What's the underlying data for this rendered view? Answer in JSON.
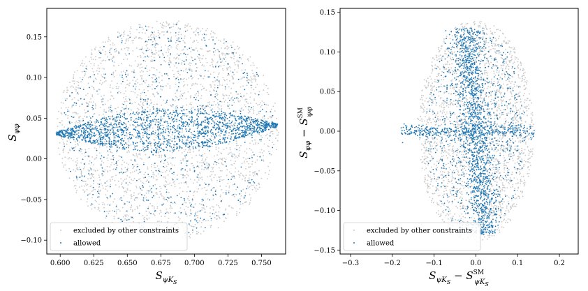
{
  "chart_data": [
    {
      "type": "scatter",
      "panel": "left",
      "xlabel": "S_{ψK_S}",
      "ylabel": "S_{ψφ}",
      "xlim": [
        0.59,
        0.768
      ],
      "ylim": [
        -0.117,
        0.185
      ],
      "xticks": [
        0.6,
        0.625,
        0.65,
        0.675,
        0.7,
        0.725,
        0.75
      ],
      "xtick_labels": [
        "0.600",
        "0.625",
        "0.650",
        "0.675",
        "0.700",
        "0.725",
        "0.750"
      ],
      "yticks": [
        -0.1,
        -0.05,
        0.0,
        0.05,
        0.1,
        0.15
      ],
      "ytick_labels": [
        "−0.10",
        "−0.05",
        "0.00",
        "0.05",
        "0.10",
        "0.15"
      ],
      "grid": false,
      "legend_position": "lower-left",
      "series": [
        {
          "name": "excluded by other constraints",
          "color": "#c8c8c8",
          "distribution": "ellipse",
          "center": [
            0.68,
            0.035
          ],
          "radii": [
            0.083,
            0.135
          ],
          "n_points": 2600
        },
        {
          "name": "allowed",
          "color": "#1f77b4",
          "distribution": "lens",
          "endpoints": [
            [
              0.597,
              0.031
            ],
            [
              0.762,
              0.041
            ]
          ],
          "half_height": 0.025,
          "extra_ellipse_radii": [
            0.08,
            0.13
          ],
          "n_points": 2200
        }
      ]
    },
    {
      "type": "scatter",
      "panel": "right",
      "xlabel": "S_{ψK_S} − S^{SM}_{ψK_S}",
      "ylabel": "S_{ψφ} − S^{SM}_{ψφ}",
      "xlim": [
        -0.325,
        0.245
      ],
      "ylim": [
        -0.155,
        0.155
      ],
      "xticks": [
        -0.3,
        -0.2,
        -0.1,
        0.0,
        0.1,
        0.2
      ],
      "xtick_labels": [
        "−0.3",
        "−0.2",
        "−0.1",
        "0.0",
        "0.1",
        "0.2"
      ],
      "yticks": [
        -0.15,
        -0.1,
        -0.05,
        0.0,
        0.05,
        0.1,
        0.15
      ],
      "ytick_labels": [
        "−0.15",
        "−0.10",
        "−0.05",
        "0.00",
        "0.05",
        "0.10",
        "0.15"
      ],
      "grid": false,
      "legend_position": "lower-left",
      "series": [
        {
          "name": "excluded by other constraints",
          "color": "#c8c8c8",
          "distribution": "ellipse",
          "center": [
            0.0,
            0.0
          ],
          "radii": [
            0.14,
            0.14
          ],
          "n_points": 2400
        },
        {
          "name": "allowed",
          "color": "#1f77b4",
          "distribution": "tilted-band",
          "center": [
            0.0,
            0.0
          ],
          "n_points": 2200
        }
      ]
    }
  ],
  "legend": {
    "excluded_label": "excluded by other constraints",
    "allowed_label": "allowed"
  }
}
